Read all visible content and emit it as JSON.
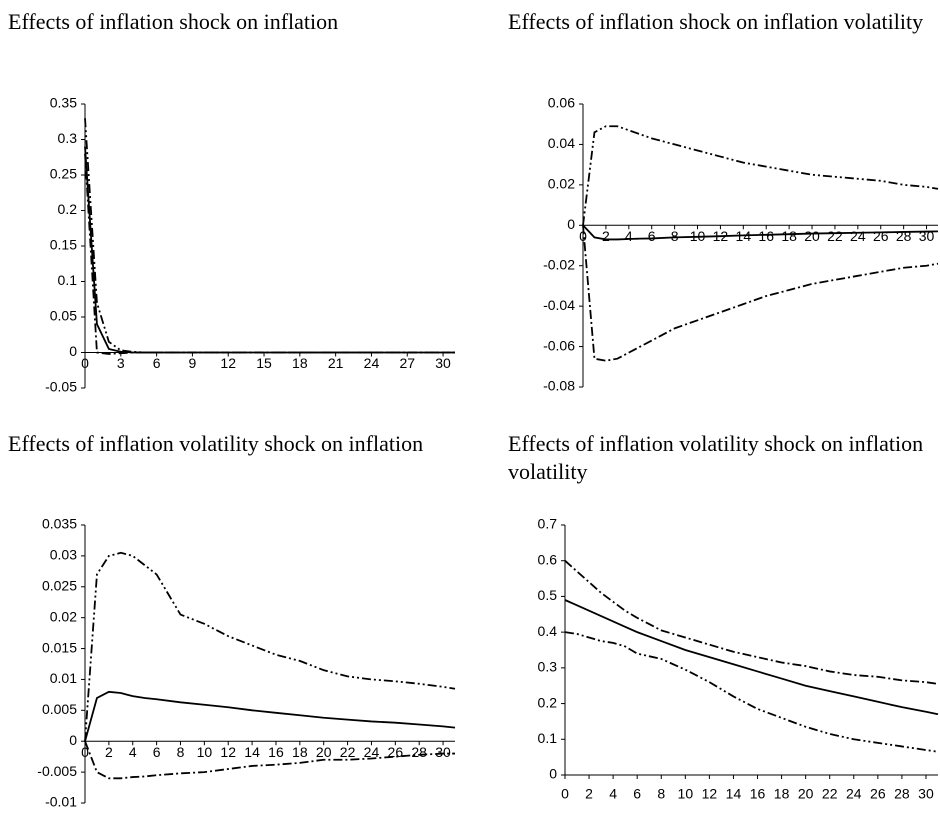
{
  "chart_data": [
    {
      "type": "line",
      "title": "Effects of inflation shock on inflation",
      "x": [
        0,
        1,
        2,
        3,
        4,
        5,
        6,
        8,
        10,
        12,
        14,
        16,
        18,
        20,
        22,
        24,
        26,
        28,
        30,
        31
      ],
      "xlim": [
        0,
        31
      ],
      "xticks": [
        0,
        3,
        6,
        9,
        12,
        15,
        18,
        21,
        24,
        27,
        30
      ],
      "ylim": [
        -0.05,
        0.35
      ],
      "yticks": [
        -0.05,
        0,
        0.05,
        0.1,
        0.15,
        0.2,
        0.25,
        0.3,
        0.35
      ],
      "grid": false,
      "series": [
        {
          "style": "solid",
          "color": "#000000",
          "values": [
            0.29,
            0.04,
            0.005,
            0.001,
            0,
            0,
            0,
            0,
            0,
            0,
            0,
            0,
            0,
            0,
            0,
            0,
            0,
            0,
            0,
            0
          ]
        },
        {
          "style": "dash-dot-dot",
          "color": "#000000",
          "values": [
            0.33,
            0.07,
            0.015,
            0.003,
            0.001,
            0,
            0,
            0,
            0,
            0,
            0,
            0,
            0,
            0,
            0,
            0,
            0,
            0,
            0,
            0
          ]
        },
        {
          "style": "dash-dot",
          "color": "#000000",
          "values": [
            0.28,
            0,
            -0.002,
            -0.001,
            0,
            0,
            0,
            0,
            0,
            0,
            0,
            0,
            0,
            0,
            0,
            0,
            0,
            0,
            0,
            0
          ]
        }
      ]
    },
    {
      "type": "line",
      "title": "Effects of inflation shock on inflation volatility",
      "x": [
        0,
        1,
        2,
        3,
        4,
        5,
        6,
        8,
        10,
        12,
        14,
        16,
        18,
        20,
        22,
        24,
        26,
        28,
        30,
        31
      ],
      "xlim": [
        0,
        31
      ],
      "xticks": [
        0,
        2,
        4,
        6,
        8,
        10,
        12,
        14,
        16,
        18,
        20,
        22,
        24,
        26,
        28,
        30
      ],
      "ylim": [
        -0.08,
        0.06
      ],
      "yticks": [
        -0.08,
        -0.06,
        -0.04,
        -0.02,
        0,
        0.02,
        0.04,
        0.06
      ],
      "grid": false,
      "series": [
        {
          "style": "solid",
          "color": "#000000",
          "values": [
            0,
            -0.006,
            -0.007,
            -0.007,
            -0.0068,
            -0.0066,
            -0.0065,
            -0.006,
            -0.0057,
            -0.0054,
            -0.005,
            -0.0047,
            -0.0044,
            -0.0041,
            -0.0039,
            -0.0037,
            -0.0035,
            -0.0033,
            -0.0031,
            -0.003
          ]
        },
        {
          "style": "dash-dot-dot",
          "color": "#000000",
          "values": [
            0,
            0.046,
            0.049,
            0.049,
            0.047,
            0.045,
            0.043,
            0.04,
            0.037,
            0.034,
            0.031,
            0.029,
            0.027,
            0.025,
            0.024,
            0.023,
            0.022,
            0.02,
            0.019,
            0.018
          ]
        },
        {
          "style": "dash-dot",
          "color": "#000000",
          "values": [
            0,
            -0.066,
            -0.067,
            -0.066,
            -0.063,
            -0.06,
            -0.057,
            -0.051,
            -0.047,
            -0.043,
            -0.039,
            -0.035,
            -0.032,
            -0.029,
            -0.027,
            -0.025,
            -0.023,
            -0.021,
            -0.02,
            -0.019
          ]
        }
      ]
    },
    {
      "type": "line",
      "title": "Effects of inflation volatility shock on inflation",
      "x": [
        0,
        1,
        2,
        3,
        4,
        5,
        6,
        8,
        10,
        12,
        14,
        16,
        18,
        20,
        22,
        24,
        26,
        28,
        30,
        31
      ],
      "xlim": [
        0,
        31
      ],
      "xticks": [
        0,
        2,
        4,
        6,
        8,
        10,
        12,
        14,
        16,
        18,
        20,
        22,
        24,
        26,
        28,
        30
      ],
      "ylim": [
        -0.01,
        0.035
      ],
      "yticks": [
        -0.01,
        -0.005,
        0,
        0.005,
        0.01,
        0.015,
        0.02,
        0.025,
        0.03,
        0.035
      ],
      "grid": false,
      "series": [
        {
          "style": "solid",
          "color": "#000000",
          "values": [
            0,
            0.007,
            0.008,
            0.0078,
            0.0073,
            0.007,
            0.0068,
            0.0063,
            0.0059,
            0.0055,
            0.005,
            0.0046,
            0.0042,
            0.0038,
            0.0035,
            0.0032,
            0.003,
            0.0027,
            0.0024,
            0.0022
          ]
        },
        {
          "style": "dash-dot-dot",
          "color": "#000000",
          "values": [
            0,
            0.027,
            0.03,
            0.0305,
            0.03,
            0.0285,
            0.027,
            0.0205,
            0.019,
            0.017,
            0.0155,
            0.014,
            0.013,
            0.0115,
            0.0105,
            0.01,
            0.0097,
            0.0093,
            0.0088,
            0.0085
          ]
        },
        {
          "style": "dash-dot",
          "color": "#000000",
          "values": [
            0,
            -0.005,
            -0.006,
            -0.006,
            -0.0058,
            -0.0057,
            -0.0055,
            -0.0052,
            -0.005,
            -0.0045,
            -0.004,
            -0.0038,
            -0.0035,
            -0.003,
            -0.003,
            -0.0028,
            -0.0025,
            -0.0022,
            -0.002,
            -0.002
          ]
        }
      ]
    },
    {
      "type": "line",
      "title": "Effects of inflation volatility shock on inflation volatility",
      "x": [
        0,
        1,
        2,
        3,
        4,
        5,
        6,
        8,
        10,
        12,
        14,
        16,
        18,
        20,
        22,
        24,
        26,
        28,
        30,
        31
      ],
      "xlim": [
        0,
        31
      ],
      "xticks": [
        0,
        2,
        4,
        6,
        8,
        10,
        12,
        14,
        16,
        18,
        20,
        22,
        24,
        26,
        28,
        30
      ],
      "ylim": [
        0,
        0.7
      ],
      "yticks": [
        0,
        0.1,
        0.2,
        0.3,
        0.4,
        0.5,
        0.6,
        0.7
      ],
      "grid": false,
      "series": [
        {
          "style": "solid",
          "color": "#000000",
          "values": [
            0.49,
            0.475,
            0.46,
            0.445,
            0.43,
            0.415,
            0.4,
            0.375,
            0.35,
            0.33,
            0.31,
            0.29,
            0.27,
            0.25,
            0.235,
            0.22,
            0.205,
            0.19,
            0.177,
            0.17
          ]
        },
        {
          "style": "dash-dot",
          "color": "#000000",
          "values": [
            0.6,
            0.57,
            0.54,
            0.51,
            0.485,
            0.46,
            0.44,
            0.405,
            0.385,
            0.365,
            0.345,
            0.33,
            0.315,
            0.305,
            0.29,
            0.28,
            0.275,
            0.265,
            0.26,
            0.255
          ]
        },
        {
          "style": "dash-dot-dot",
          "color": "#000000",
          "values": [
            0.4,
            0.395,
            0.385,
            0.375,
            0.37,
            0.36,
            0.34,
            0.325,
            0.295,
            0.26,
            0.22,
            0.185,
            0.16,
            0.135,
            0.115,
            0.1,
            0.09,
            0.08,
            0.07,
            0.065
          ]
        }
      ]
    }
  ]
}
